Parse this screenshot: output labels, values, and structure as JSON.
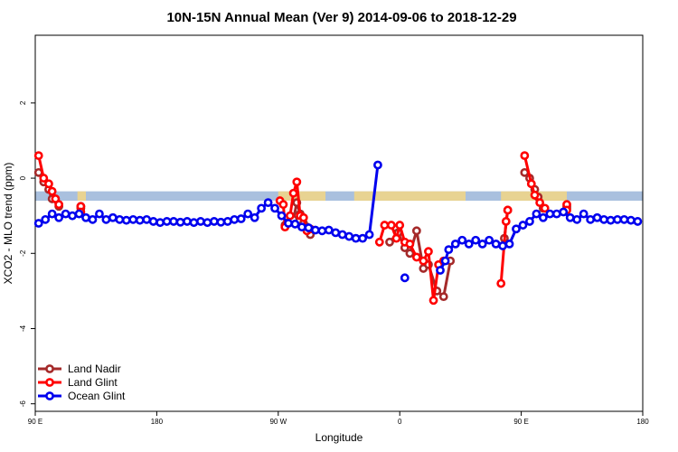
{
  "chart_data": {
    "type": "line",
    "title": "10N-15N Annual Mean (Ver 9)   2014-09-06 to 2018-12-29",
    "xlabel": "Longitude",
    "ylabel": "XCO2 - MLO trend (ppm)",
    "xlim": [
      0,
      360
    ],
    "ylim": [
      -6.2,
      3.8
    ],
    "x_ticks": [
      {
        "pos": 0,
        "label": "90 E"
      },
      {
        "pos": 72,
        "label": "180"
      },
      {
        "pos": 144,
        "label": "90 W"
      },
      {
        "pos": 216,
        "label": "0"
      },
      {
        "pos": 288,
        "label": "90 E"
      },
      {
        "pos": 360,
        "label": "180"
      }
    ],
    "y_ticks": [
      {
        "value": 2,
        "label": "2"
      },
      {
        "value": 0,
        "label": "0"
      },
      {
        "value": -2,
        "label": "-2"
      },
      {
        "value": -4,
        "label": "-4"
      },
      {
        "value": -6,
        "label": "-6"
      }
    ],
    "band": {
      "ymin": -0.6,
      "ymax": -0.35,
      "color": "#a9c0de",
      "land_color": "#fdd978"
    },
    "land_segments": [
      [
        25,
        30
      ],
      [
        144,
        172
      ],
      [
        189,
        255
      ],
      [
        276,
        315
      ]
    ],
    "series": [
      {
        "name": "Land Nadir",
        "color": "#a52a2a",
        "segments": [
          [
            [
              2,
              0.15
            ],
            [
              5,
              -0.1
            ],
            [
              8,
              -0.3
            ],
            [
              10,
              -0.55
            ],
            [
              14,
              -0.75
            ]
          ],
          [
            [
              27,
              -0.75
            ],
            [
              27,
              -0.8
            ]
          ],
          [
            [
              148,
              -1.25
            ],
            [
              151,
              -1.15
            ],
            [
              153,
              -1.1
            ],
            [
              155,
              -0.65
            ],
            [
              157,
              -0.95
            ],
            [
              159,
              -1.2
            ],
            [
              161,
              -1.3
            ],
            [
              163,
              -1.5
            ]
          ],
          [
            [
              210,
              -1.7
            ],
            [
              215,
              -1.45
            ],
            [
              219,
              -1.85
            ],
            [
              222,
              -2.0
            ],
            [
              226,
              -1.4
            ],
            [
              230,
              -2.4
            ],
            [
              233,
              -2.3
            ],
            [
              238,
              -3.0
            ],
            [
              242,
              -3.15
            ],
            [
              246,
              -2.2
            ]
          ],
          [
            [
              278,
              -1.6
            ],
            [
              280,
              -0.85
            ]
          ],
          [
            [
              290,
              0.15
            ],
            [
              293,
              0.0
            ],
            [
              296,
              -0.3
            ],
            [
              298,
              -0.5
            ],
            [
              301,
              -0.8
            ]
          ],
          [
            [
              315,
              -0.75
            ],
            [
              315,
              -0.8
            ]
          ]
        ]
      },
      {
        "name": "Land Glint",
        "color": "#ff0000",
        "segments": [
          [
            [
              2,
              0.6
            ],
            [
              5,
              0.0
            ],
            [
              8,
              -0.15
            ],
            [
              10,
              -0.35
            ],
            [
              12,
              -0.55
            ],
            [
              14,
              -0.7
            ]
          ],
          [
            [
              27,
              -0.75
            ],
            [
              27,
              -0.9
            ]
          ],
          [
            [
              145,
              -0.6
            ],
            [
              147,
              -0.7
            ],
            [
              148,
              -1.3
            ],
            [
              151,
              -1.0
            ],
            [
              153,
              -0.4
            ],
            [
              155,
              -0.1
            ],
            [
              157,
              -1.0
            ],
            [
              159,
              -1.05
            ],
            [
              161,
              -1.4
            ],
            [
              163,
              -1.35
            ]
          ],
          [
            [
              204,
              -1.7
            ],
            [
              207,
              -1.25
            ],
            [
              211,
              -1.25
            ],
            [
              214,
              -1.6
            ],
            [
              216,
              -1.25
            ],
            [
              219,
              -1.7
            ],
            [
              222,
              -1.75
            ],
            [
              226,
              -2.1
            ],
            [
              230,
              -2.2
            ],
            [
              233,
              -1.95
            ],
            [
              236,
              -3.25
            ],
            [
              239,
              -2.3
            ],
            [
              242,
              -2.2
            ]
          ],
          [
            [
              276,
              -2.8
            ],
            [
              279,
              -1.15
            ],
            [
              280,
              -0.85
            ]
          ],
          [
            [
              290,
              0.6
            ],
            [
              294,
              -0.15
            ],
            [
              296,
              -0.45
            ],
            [
              299,
              -0.65
            ],
            [
              302,
              -0.8
            ]
          ],
          [
            [
              315,
              -0.7
            ],
            [
              315,
              -0.85
            ]
          ]
        ]
      },
      {
        "name": "Ocean Glint",
        "color": "#0000ee",
        "segments": [
          [
            [
              2,
              -1.2
            ],
            [
              6,
              -1.1
            ],
            [
              10,
              -0.95
            ],
            [
              14,
              -1.05
            ],
            [
              18,
              -0.95
            ],
            [
              22,
              -1.0
            ],
            [
              26,
              -0.95
            ],
            [
              30,
              -1.05
            ],
            [
              34,
              -1.1
            ],
            [
              38,
              -0.95
            ],
            [
              42,
              -1.1
            ],
            [
              46,
              -1.05
            ],
            [
              50,
              -1.1
            ],
            [
              54,
              -1.12
            ],
            [
              58,
              -1.1
            ],
            [
              62,
              -1.12
            ],
            [
              66,
              -1.1
            ],
            [
              70,
              -1.15
            ],
            [
              74,
              -1.18
            ],
            [
              78,
              -1.15
            ],
            [
              82,
              -1.15
            ],
            [
              86,
              -1.17
            ],
            [
              90,
              -1.15
            ],
            [
              94,
              -1.18
            ],
            [
              98,
              -1.15
            ],
            [
              102,
              -1.18
            ],
            [
              106,
              -1.15
            ],
            [
              110,
              -1.17
            ],
            [
              114,
              -1.15
            ],
            [
              118,
              -1.1
            ],
            [
              122,
              -1.08
            ],
            [
              126,
              -0.95
            ],
            [
              130,
              -1.05
            ],
            [
              134,
              -0.8
            ],
            [
              138,
              -0.65
            ],
            [
              142,
              -0.8
            ],
            [
              146,
              -1.0
            ],
            [
              150,
              -1.2
            ],
            [
              154,
              -1.22
            ],
            [
              158,
              -1.3
            ],
            [
              162,
              -1.32
            ],
            [
              166,
              -1.38
            ],
            [
              170,
              -1.4
            ],
            [
              174,
              -1.38
            ],
            [
              178,
              -1.45
            ],
            [
              182,
              -1.5
            ],
            [
              186,
              -1.55
            ],
            [
              190,
              -1.6
            ],
            [
              194,
              -1.6
            ],
            [
              198,
              -1.5
            ],
            [
              203,
              0.35
            ]
          ],
          [
            [
              219,
              -2.65
            ]
          ],
          [
            [
              240,
              -2.45
            ],
            [
              243,
              -2.2
            ],
            [
              245,
              -1.9
            ],
            [
              249,
              -1.75
            ],
            [
              253,
              -1.65
            ],
            [
              257,
              -1.75
            ],
            [
              261,
              -1.65
            ],
            [
              265,
              -1.75
            ],
            [
              269,
              -1.65
            ],
            [
              273,
              -1.75
            ],
            [
              277,
              -1.8
            ],
            [
              281,
              -1.75
            ],
            [
              285,
              -1.35
            ],
            [
              289,
              -1.25
            ],
            [
              293,
              -1.15
            ],
            [
              297,
              -0.95
            ],
            [
              301,
              -1.05
            ],
            [
              305,
              -0.95
            ],
            [
              309,
              -0.95
            ],
            [
              313,
              -0.9
            ],
            [
              317,
              -1.05
            ],
            [
              321,
              -1.1
            ],
            [
              325,
              -0.95
            ],
            [
              329,
              -1.1
            ],
            [
              333,
              -1.05
            ],
            [
              337,
              -1.1
            ],
            [
              341,
              -1.12
            ],
            [
              345,
              -1.1
            ],
            [
              349,
              -1.1
            ],
            [
              353,
              -1.12
            ],
            [
              357,
              -1.15
            ]
          ]
        ]
      }
    ],
    "legend": {
      "position": "bottom-left"
    }
  }
}
